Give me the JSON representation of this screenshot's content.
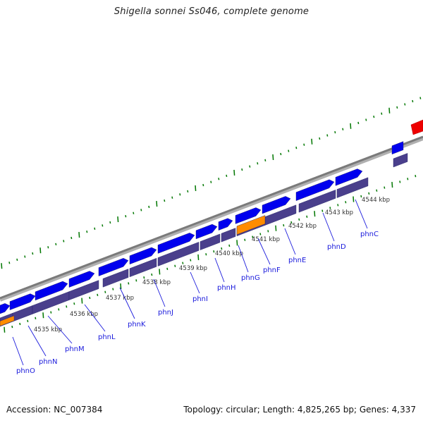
{
  "title": "Shigella sonnei Ss046, complete genome",
  "accession_label": "Accession: NC_007384",
  "summary_label": "Topology: circular; Length: 4,825,265 bp; Genes: 4,337",
  "colors": {
    "cds_forward": "#0000ee",
    "cds_track": "#4a3f8c",
    "highlight": "#ff8c00",
    "other_feature": "#ee0000",
    "backbone": "#808080",
    "tick": "#007700",
    "gene_label": "#1a1adc"
  },
  "kbp_ticks": [
    "4535 kbp",
    "4536 kbp",
    "4537 kbp",
    "4538 kbp",
    "4539 kbp",
    "4540 kbp",
    "4541 kbp",
    "4542 kbp",
    "4543 kbp",
    "4544 kbp"
  ],
  "genes": [
    "phnO",
    "phnN",
    "phnM",
    "phnL",
    "phnK",
    "phnJ",
    "phnI",
    "phnH",
    "phnG",
    "phnF",
    "phnE",
    "phnD",
    "phnC"
  ]
}
